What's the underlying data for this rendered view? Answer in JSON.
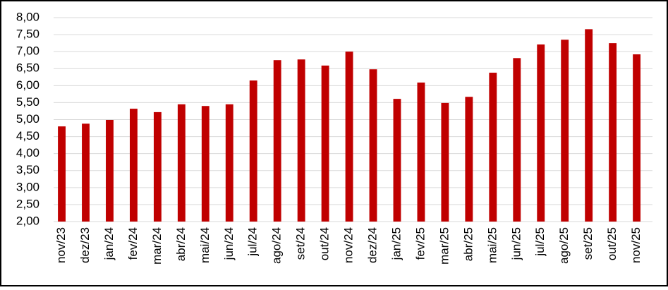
{
  "chart_data": {
    "type": "bar",
    "categories": [
      "nov/23",
      "dez/23",
      "jan/24",
      "fev/24",
      "mar/24",
      "abr/24",
      "mai/24",
      "jun/24",
      "jul/24",
      "ago/24",
      "set/24",
      "out/24",
      "nov/24",
      "dez/24",
      "jan/25",
      "fev/25",
      "mar/25",
      "abr/25",
      "mai/25",
      "jun/25",
      "jul/25",
      "ago/25",
      "set/25",
      "out/25",
      "nov/25"
    ],
    "values": [
      4.8,
      4.88,
      4.99,
      5.32,
      5.22,
      5.45,
      5.4,
      5.45,
      6.15,
      6.75,
      6.77,
      6.59,
      7.0,
      6.48,
      5.61,
      6.09,
      5.49,
      5.67,
      6.38,
      6.81,
      7.21,
      7.35,
      7.66,
      7.25,
      6.92
    ],
    "color": "#c00000",
    "ylim": [
      2,
      8
    ],
    "yticks": [
      {
        "value": 2,
        "label": "2,00"
      },
      {
        "value": 2.5,
        "label": "2,50"
      },
      {
        "value": 3,
        "label": "3,00"
      },
      {
        "value": 3.5,
        "label": "3,50"
      },
      {
        "value": 4,
        "label": "4,00"
      },
      {
        "value": 4.5,
        "label": "4,50"
      },
      {
        "value": 5,
        "label": "5,00"
      },
      {
        "value": 5.5,
        "label": "5,50"
      },
      {
        "value": 6,
        "label": "6,00"
      },
      {
        "value": 6.5,
        "label": "6,50"
      },
      {
        "value": 7,
        "label": "7,00"
      },
      {
        "value": 7.5,
        "label": "7,50"
      },
      {
        "value": 8,
        "label": "8,00"
      }
    ],
    "grid": true
  }
}
